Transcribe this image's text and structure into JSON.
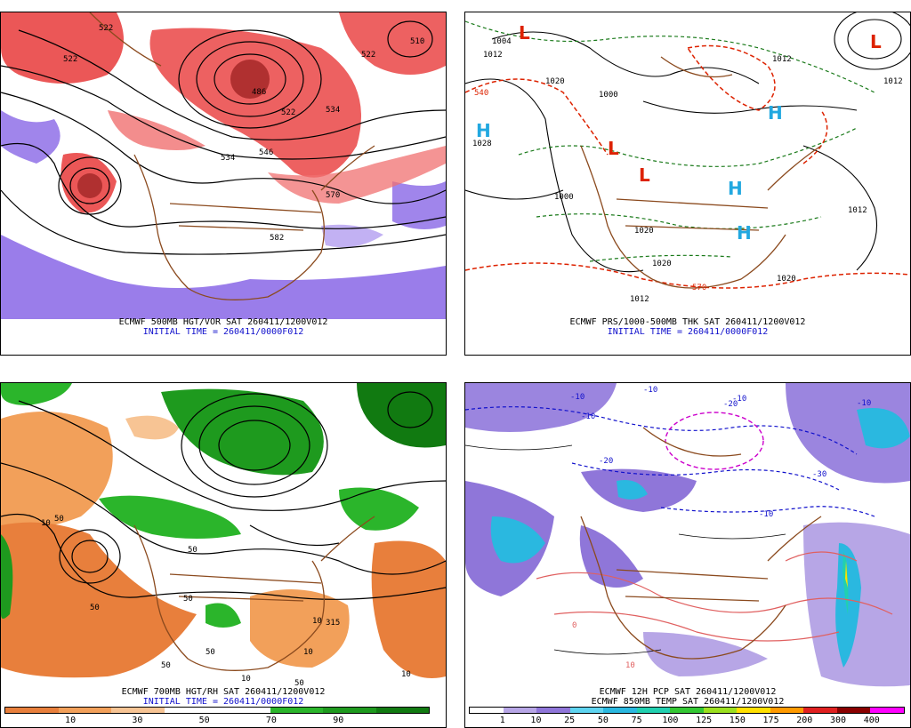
{
  "panels": {
    "tl": {
      "caption1": "ECMWF 500MB HGT/VOR SAT 260411/1200V012",
      "caption2": "INITIAL TIME = 260411/0000F012",
      "contour_labels": [
        "522",
        "522",
        "486",
        "522",
        "534",
        "546",
        "534",
        "570",
        "582",
        "510",
        "522"
      ]
    },
    "tr": {
      "caption1": "ECMWF PRS/1000-500MB THK SAT 260411/1200V012",
      "caption2": "INITIAL TIME = 260411/0000F012",
      "contour_labels": [
        "1004",
        "1012",
        "1020",
        "1028",
        "1000",
        "1012",
        "1020",
        "1020",
        "1012",
        "1012",
        "1020",
        "1012",
        "540",
        "570",
        "1000"
      ],
      "centers": {
        "L": "L",
        "H": "H"
      }
    },
    "bl": {
      "caption1": "ECMWF 700MB HGT/RH SAT 260411/1200V012",
      "caption2": "INITIAL TIME = 260411/0000F012",
      "colorbar_ticks": [
        "10",
        "30",
        "50",
        "70",
        "90"
      ],
      "colorbar_colors": [
        "#e87f3c",
        "#f2a05a",
        "#f7c494",
        "#ffffff",
        "#ffffff",
        "#2bb52b",
        "#1e9a1e",
        "#117a11"
      ],
      "contour_labels": [
        "50",
        "10",
        "50",
        "10",
        "50",
        "315",
        "10",
        "50",
        "50",
        "10",
        "50",
        "50",
        "10"
      ]
    },
    "br": {
      "caption1": "ECMWF 12H PCP SAT 260411/1200V012",
      "caption2": "ECMWF 850MB TEMP SAT 260411/1200V012",
      "colorbar_ticks": [
        "1",
        "10",
        "25",
        "50",
        "75",
        "100",
        "125",
        "150",
        "175",
        "200",
        "300",
        "400"
      ],
      "colorbar_colors": [
        "#ffffff",
        "#b7a6e6",
        "#8f76d9",
        "#5ed4f0",
        "#2ab8e0",
        "#21d0b0",
        "#33c733",
        "#9be01f",
        "#ffe000",
        "#ff9a00",
        "#e02020",
        "#8a0000",
        "#ff00ff"
      ],
      "contour_labels": [
        "-10",
        "-10",
        "-10",
        "-20",
        "-10",
        "-10",
        "-30",
        "-20",
        "-10",
        "0",
        "10"
      ]
    }
  }
}
